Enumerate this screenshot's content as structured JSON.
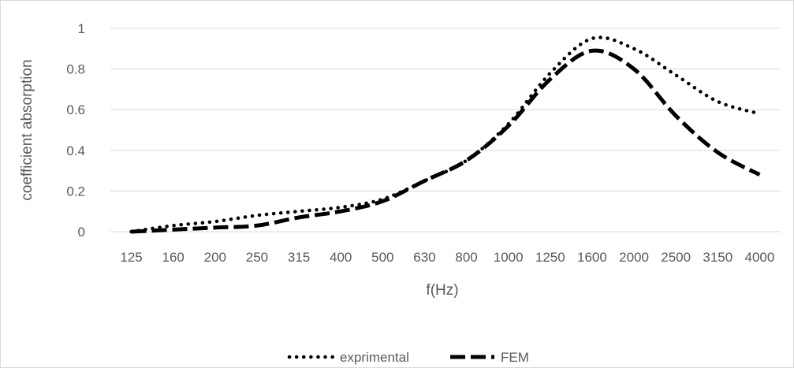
{
  "chart_data": {
    "type": "line",
    "title": "",
    "xlabel": "f(Hz)",
    "ylabel": "coefficient absorption",
    "categories": [
      "125",
      "160",
      "200",
      "250",
      "315",
      "400",
      "500",
      "630",
      "800",
      "1000",
      "1250",
      "1600",
      "2000",
      "2500",
      "3150",
      "4000"
    ],
    "ylim": [
      0,
      1
    ],
    "yticks": [
      "0",
      "0.2",
      "0.4",
      "0.6",
      "0.8",
      "1"
    ],
    "grid": true,
    "legend_position": "bottom",
    "series": [
      {
        "name": "exprimental",
        "style": "dotted",
        "color": "#000000",
        "values": [
          0.0,
          0.03,
          0.05,
          0.08,
          0.1,
          0.12,
          0.16,
          0.25,
          0.35,
          0.53,
          0.78,
          0.95,
          0.9,
          0.77,
          0.64,
          0.58
        ]
      },
      {
        "name": "FEM",
        "style": "dashed",
        "color": "#000000",
        "values": [
          0.0,
          0.01,
          0.02,
          0.03,
          0.07,
          0.1,
          0.15,
          0.25,
          0.35,
          0.52,
          0.75,
          0.89,
          0.8,
          0.57,
          0.39,
          0.28
        ]
      }
    ]
  }
}
